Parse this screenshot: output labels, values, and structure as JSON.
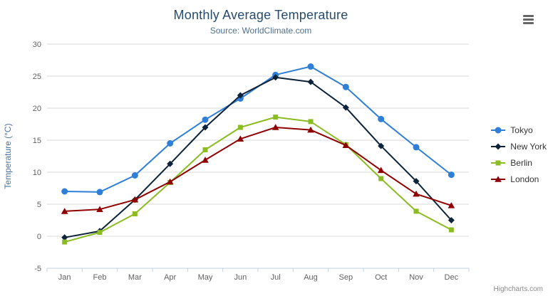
{
  "chart_data": {
    "type": "line",
    "title": "Monthly Average Temperature",
    "subtitle": "Source: WorldClimate.com",
    "xlabel": "",
    "ylabel": "Temperature (°C)",
    "ylim": [
      -5,
      30
    ],
    "ytick_interval": 5,
    "grid": true,
    "legend_position": "right",
    "categories": [
      "Jan",
      "Feb",
      "Mar",
      "Apr",
      "May",
      "Jun",
      "Jul",
      "Aug",
      "Sep",
      "Oct",
      "Nov",
      "Dec"
    ],
    "series": [
      {
        "name": "Tokyo",
        "marker": "circle",
        "color": "#2f7ed8",
        "values": [
          7.0,
          6.9,
          9.5,
          14.5,
          18.2,
          21.5,
          25.2,
          26.5,
          23.3,
          18.3,
          13.9,
          9.6
        ]
      },
      {
        "name": "New York",
        "marker": "diamond",
        "color": "#0d233a",
        "values": [
          -0.2,
          0.8,
          5.7,
          11.3,
          17.0,
          22.0,
          24.8,
          24.1,
          20.1,
          14.1,
          8.6,
          2.5
        ]
      },
      {
        "name": "Berlin",
        "marker": "square",
        "color": "#8bbc21",
        "values": [
          -0.9,
          0.6,
          3.5,
          8.4,
          13.5,
          17.0,
          18.6,
          17.9,
          14.3,
          9.0,
          3.9,
          1.0
        ]
      },
      {
        "name": "London",
        "marker": "triangle",
        "color": "#910000",
        "values": [
          3.9,
          4.2,
          5.7,
          8.5,
          11.9,
          15.2,
          17.0,
          16.6,
          14.2,
          10.3,
          6.6,
          4.8
        ]
      }
    ]
  },
  "theme": {
    "title_color": "#274b6d",
    "subtitle_color": "#50708f",
    "grid_color": "#d8d8d8",
    "axis_line_color": "#c0d0e0",
    "axis_label_color": "#606060",
    "yaxis_title_color": "#4d759e",
    "legend_text_color": "#333333",
    "credit_color": "#8a8a8a",
    "menu_icon_color": "#666666"
  },
  "credit": "Highcharts.com"
}
